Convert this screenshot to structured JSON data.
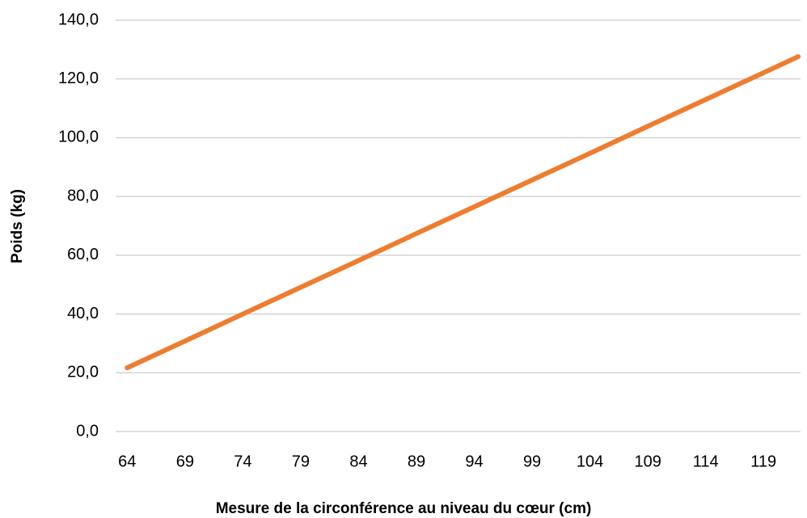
{
  "chart_data": {
    "type": "line",
    "x_label": "Mesure de la circonférence au niveau du cœur (cm)",
    "y_label": "Poids (kg)",
    "x": [
      64,
      69,
      74,
      79,
      84,
      89,
      94,
      99,
      104,
      109,
      114,
      119,
      122
    ],
    "series": [
      {
        "color": "#ed7d31",
        "values": [
          21.7,
          30.8,
          40.0,
          49.1,
          58.2,
          67.4,
          76.5,
          85.6,
          94.7,
          103.9,
          113.0,
          122.1,
          127.6
        ]
      }
    ],
    "xlim": [
      63,
      122.2
    ],
    "xticks": [
      64,
      69,
      74,
      79,
      84,
      89,
      94,
      99,
      104,
      109,
      114,
      119
    ],
    "ylim": [
      0,
      140
    ],
    "yticks": [
      {
        "value": 0,
        "label": "0,0"
      },
      {
        "value": 20,
        "label": "20,0"
      },
      {
        "value": 40,
        "label": "40,0"
      },
      {
        "value": 60,
        "label": "60,0"
      },
      {
        "value": 80,
        "label": "80,0"
      },
      {
        "value": 100,
        "label": "100,0"
      },
      {
        "value": 120,
        "label": "120,0"
      },
      {
        "value": 140,
        "label": "140,0"
      }
    ],
    "grid": true
  }
}
